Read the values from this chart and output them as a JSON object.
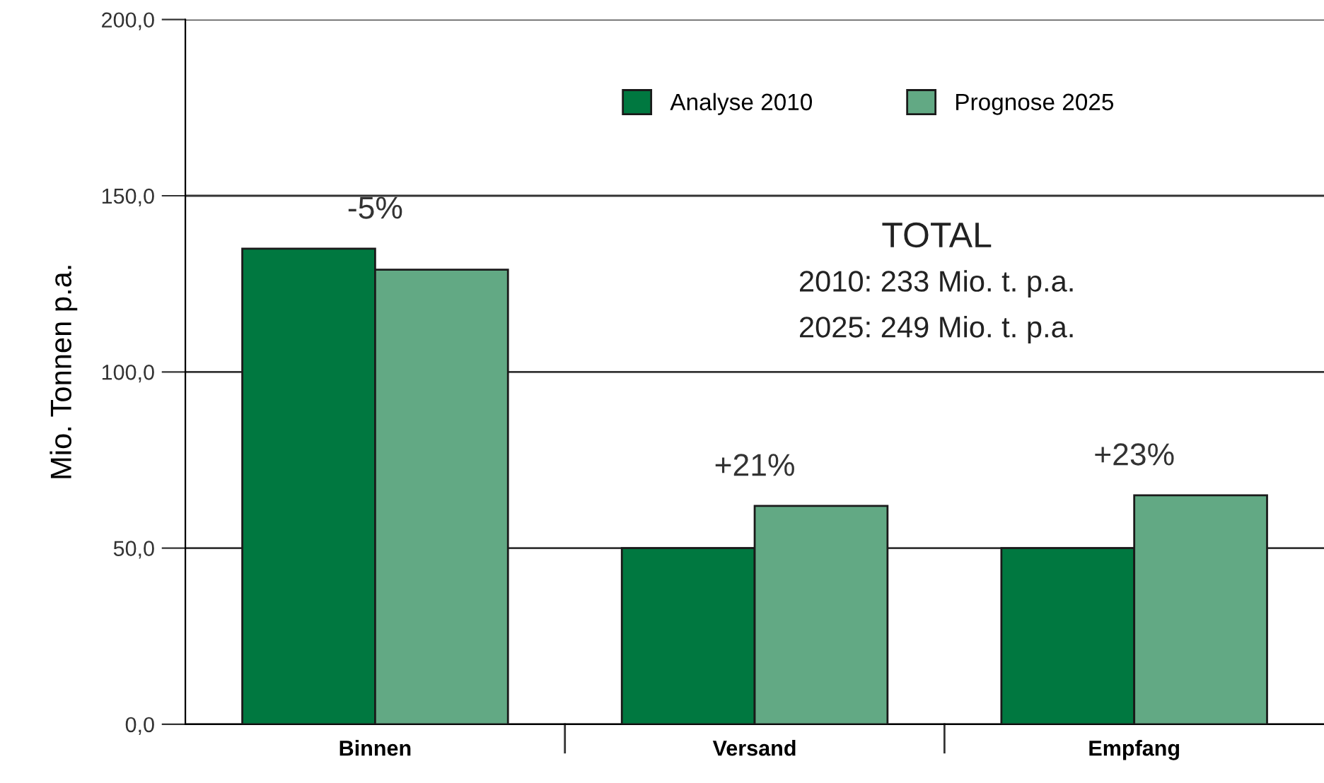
{
  "chart_data": {
    "type": "bar",
    "ylabel": "Mio. Tonnen p.a.",
    "categories": [
      "Binnen",
      "Versand",
      "Empfang"
    ],
    "series": [
      {
        "name": "Analyse 2010",
        "color": "#007840",
        "values": [
          135,
          50,
          50
        ]
      },
      {
        "name": "Prognose 2025",
        "color": "#62a984",
        "values": [
          129,
          62,
          65
        ]
      }
    ],
    "ylim": [
      0,
      200
    ],
    "yticks": [
      {
        "value": 0,
        "label": "0,0"
      },
      {
        "value": 50,
        "label": "50,0"
      },
      {
        "value": 100,
        "label": "100,0"
      },
      {
        "value": 150,
        "label": "150,0"
      },
      {
        "value": 200,
        "label": "200,0"
      }
    ],
    "grid": "y",
    "legend": "top",
    "annotations": [
      "-5%",
      "+21%",
      "+23%",
      "TOTAL",
      "2010: 233 Mio. t. p.a.",
      "2025: 249 Mio. t. p.a."
    ]
  }
}
